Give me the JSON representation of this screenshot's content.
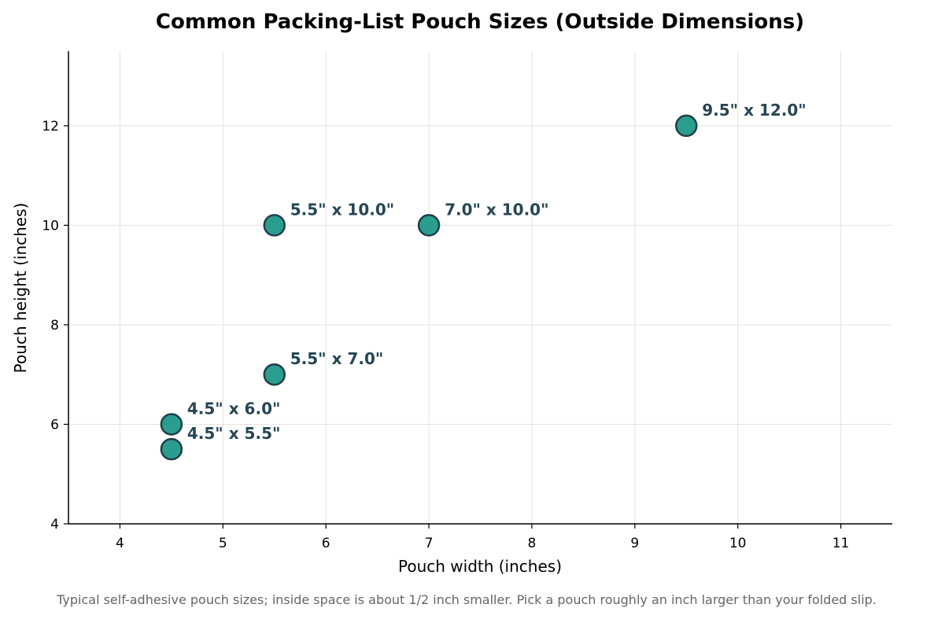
{
  "chart_data": {
    "type": "scatter",
    "title": "Common Packing-List Pouch Sizes (Outside Dimensions)",
    "xlabel": "Pouch width (inches)",
    "ylabel": "Pouch height (inches)",
    "xlim": [
      3.5,
      11.5
    ],
    "ylim": [
      4,
      13.5
    ],
    "xticks": [
      4,
      5,
      6,
      7,
      8,
      9,
      10,
      11
    ],
    "yticks": [
      4,
      6,
      8,
      10,
      12
    ],
    "grid": true,
    "points": [
      {
        "x": 4.5,
        "y": 5.5,
        "label": "4.5\" x 5.5\""
      },
      {
        "x": 4.5,
        "y": 6.0,
        "label": "4.5\" x 6.0\""
      },
      {
        "x": 5.5,
        "y": 7.0,
        "label": "5.5\" x 7.0\""
      },
      {
        "x": 5.5,
        "y": 10.0,
        "label": "5.5\" x 10.0\""
      },
      {
        "x": 7.0,
        "y": 10.0,
        "label": "7.0\" x 10.0\""
      },
      {
        "x": 9.5,
        "y": 12.0,
        "label": "9.5\" x 12.0\""
      }
    ],
    "colors": {
      "marker_fill": "#2a9d8f",
      "marker_edge": "#1f3f4a",
      "label": "#264653",
      "grid": "#e3e3e3",
      "axis": "#000000",
      "caption": "#666666"
    },
    "caption": "Typical self-adhesive pouch sizes; inside space is about 1/2 inch smaller. Pick a pouch roughly an inch larger than your folded slip."
  }
}
